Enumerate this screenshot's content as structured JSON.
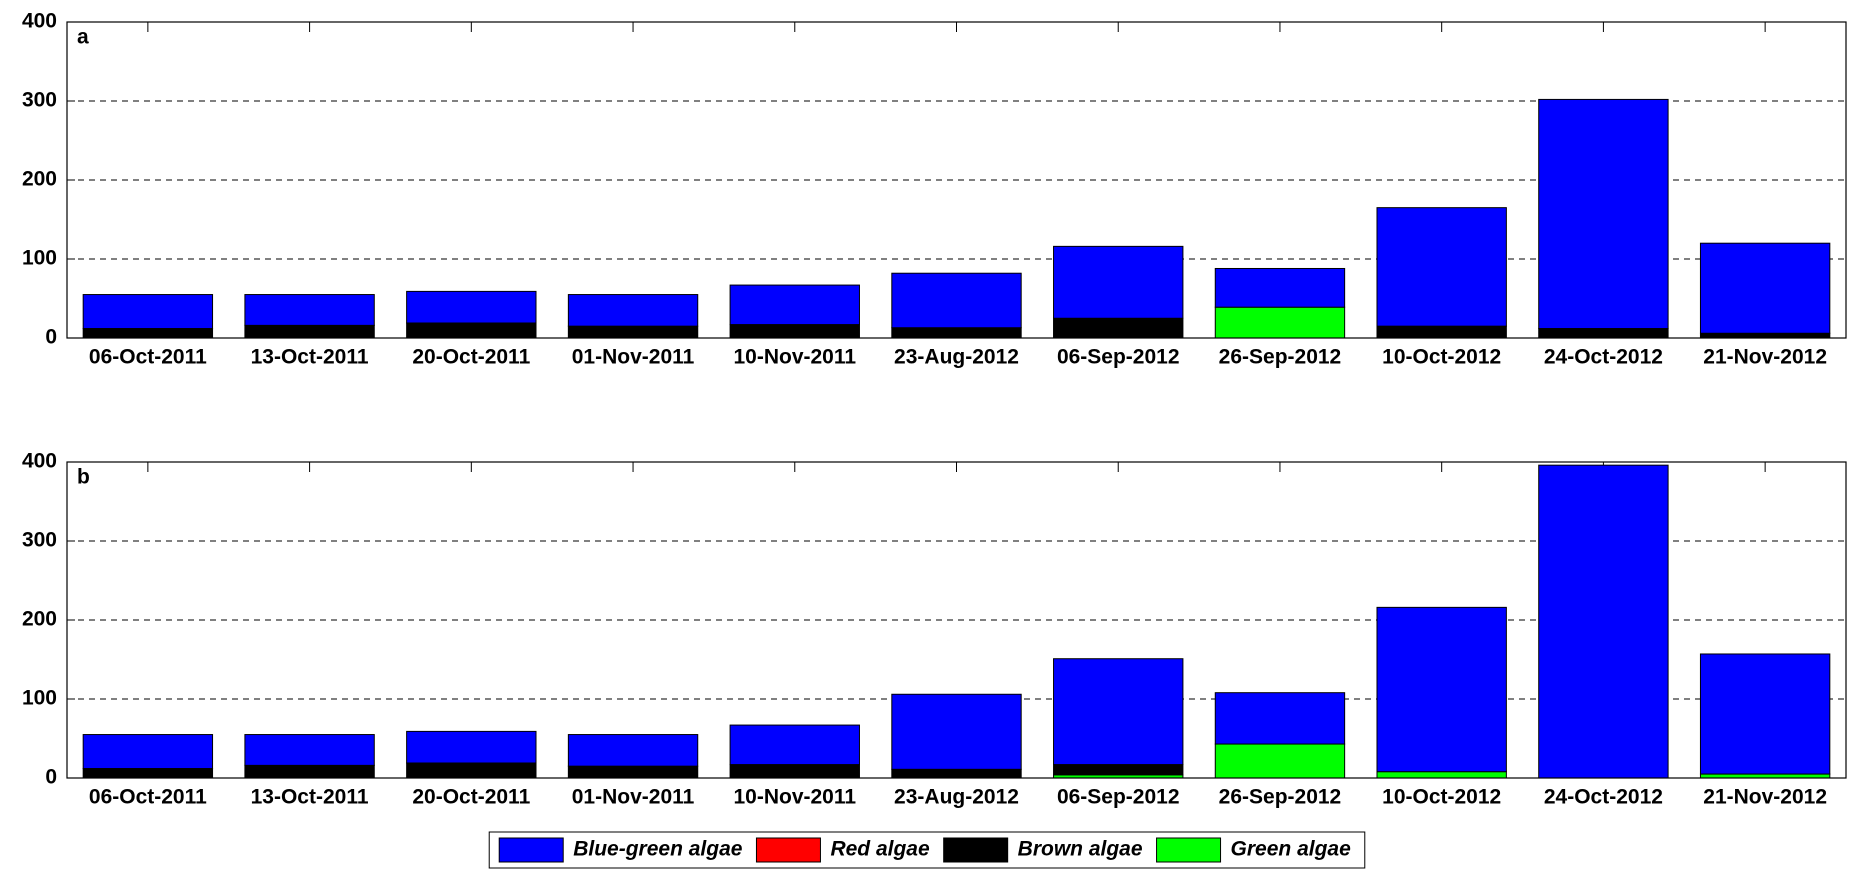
{
  "chart_data": [
    {
      "type": "stacked_bar",
      "title": "a",
      "categories": [
        "06-Oct-2011",
        "13-Oct-2011",
        "20-Oct-2011",
        "01-Nov-2011",
        "10-Nov-2011",
        "23-Aug-2012",
        "06-Sep-2012",
        "26-Sep-2012",
        "10-Oct-2012",
        "24-Oct-2012",
        "21-Nov-2012"
      ],
      "series": [
        {
          "name": "Blue-green algae",
          "color": "#0000ff",
          "values": [
            43,
            39,
            40,
            40,
            50,
            69,
            91,
            49,
            150,
            290,
            114
          ]
        },
        {
          "name": "Red algae",
          "color": "#ff0000",
          "values": [
            0,
            0,
            0,
            0,
            0,
            0,
            0,
            0,
            0,
            0,
            0
          ]
        },
        {
          "name": "Brown algae",
          "color": "#000000",
          "values": [
            12,
            16,
            19,
            15,
            17,
            13,
            25,
            0,
            15,
            12,
            6
          ]
        },
        {
          "name": "Green algae",
          "color": "#00ff00",
          "values": [
            0,
            0,
            0,
            0,
            0,
            0,
            0,
            39,
            0,
            0,
            0
          ]
        }
      ],
      "ylim": [
        0,
        400
      ],
      "yticks": [
        0,
        100,
        200,
        300,
        400
      ],
      "grid": true
    },
    {
      "type": "stacked_bar",
      "title": "b",
      "categories": [
        "06-Oct-2011",
        "13-Oct-2011",
        "20-Oct-2011",
        "01-Nov-2011",
        "10-Nov-2011",
        "23-Aug-2012",
        "06-Sep-2012",
        "26-Sep-2012",
        "10-Oct-2012",
        "24-Oct-2012",
        "21-Nov-2012"
      ],
      "series": [
        {
          "name": "Blue-green algae",
          "color": "#0000ff",
          "values": [
            43,
            39,
            40,
            40,
            50,
            95,
            134,
            65,
            208,
            396,
            152
          ]
        },
        {
          "name": "Red algae",
          "color": "#ff0000",
          "values": [
            0,
            0,
            0,
            0,
            0,
            0,
            0,
            0,
            0,
            0,
            0
          ]
        },
        {
          "name": "Brown algae",
          "color": "#000000",
          "values": [
            12,
            16,
            19,
            15,
            17,
            11,
            13,
            0,
            0,
            0,
            0
          ]
        },
        {
          "name": "Green algae",
          "color": "#00ff00",
          "values": [
            0,
            0,
            0,
            0,
            0,
            0,
            4,
            43,
            8,
            0,
            5
          ]
        }
      ],
      "ylim": [
        0,
        400
      ],
      "yticks": [
        0,
        100,
        200,
        300,
        400
      ],
      "grid": true,
      "legend": "bottom"
    }
  ]
}
